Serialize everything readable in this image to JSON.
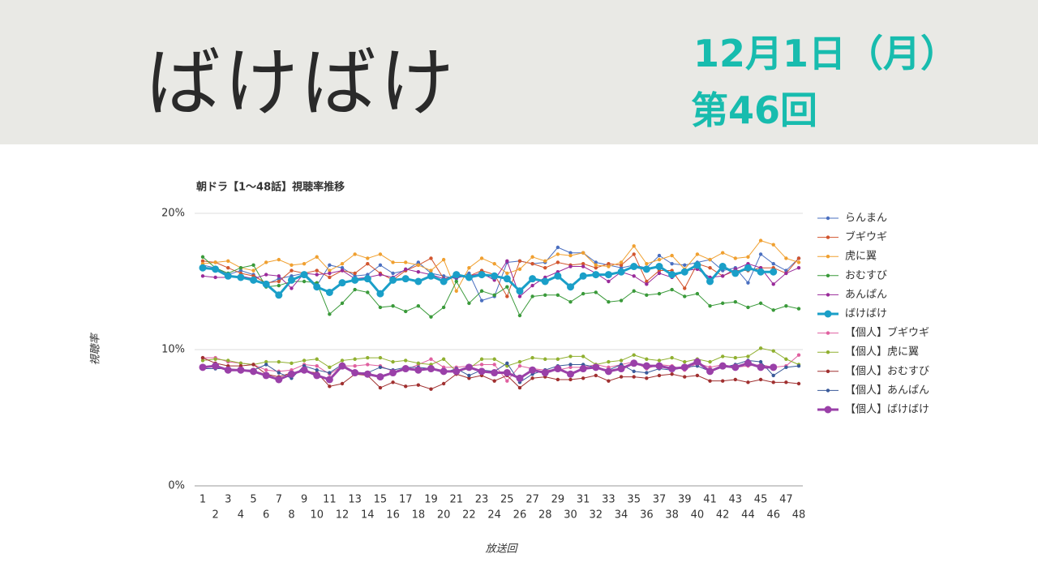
{
  "header": {
    "title": "ばけばけ",
    "date": "12月1日（月）",
    "episode": "第46回"
  },
  "chart_data": {
    "type": "line",
    "title": "朝ドラ【1〜48話】視聴率推移",
    "x_label": "放送回",
    "y_label": "視聴率",
    "categories": [
      1,
      2,
      3,
      4,
      5,
      6,
      7,
      8,
      9,
      10,
      11,
      12,
      13,
      14,
      15,
      16,
      17,
      18,
      19,
      20,
      21,
      22,
      23,
      24,
      25,
      26,
      27,
      28,
      29,
      30,
      31,
      32,
      33,
      34,
      35,
      36,
      37,
      38,
      39,
      40,
      41,
      42,
      43,
      44,
      45,
      46,
      47,
      48
    ],
    "ylim": [
      0,
      20
    ],
    "yticks": [
      {
        "value": 0,
        "label": "0%"
      },
      {
        "value": 10,
        "label": "10%"
      },
      {
        "value": 20,
        "label": "20%"
      }
    ],
    "grid": true,
    "legend": "right",
    "series": [
      {
        "name": "らんまん",
        "color": "#4a6fc0",
        "line_width": 1,
        "values": [
          16.2,
          16.0,
          15.5,
          15.8,
          15.5,
          14.8,
          15.2,
          15.4,
          15.6,
          14.7,
          16.2,
          16.0,
          15.4,
          15.5,
          16.2,
          15.6,
          15.8,
          16.4,
          15.6,
          15.4,
          15.2,
          15.6,
          13.6,
          13.9,
          16.4,
          16.5,
          16.3,
          16.4,
          17.5,
          17.1,
          17.1,
          16.4,
          16.2,
          16.0,
          16.2,
          16.0,
          16.9,
          16.3,
          16.2,
          16.4,
          16.6,
          15.8,
          16.0,
          14.9,
          17.0,
          16.3,
          15.8,
          16.7
        ]
      },
      {
        "name": "ブギウギ",
        "color": "#d2552e",
        "line_width": 1,
        "values": [
          16.5,
          16.4,
          16.0,
          15.6,
          15.4,
          14.9,
          15.0,
          15.8,
          15.6,
          15.8,
          15.3,
          15.8,
          15.6,
          16.3,
          15.6,
          15.1,
          15.8,
          16.2,
          16.7,
          15.2,
          15.4,
          15.4,
          15.8,
          15.5,
          13.9,
          16.5,
          16.3,
          16.0,
          16.4,
          16.2,
          16.3,
          16.0,
          16.3,
          16.2,
          17.0,
          15.0,
          15.8,
          15.8,
          14.5,
          16.3,
          16.0,
          15.4,
          15.8,
          15.8,
          16.0,
          16.0,
          15.6,
          16.7
        ]
      },
      {
        "name": "虎に翼",
        "color": "#f0a030",
        "line_width": 1,
        "values": [
          16.3,
          16.4,
          16.5,
          16.0,
          15.8,
          16.4,
          16.6,
          16.2,
          16.3,
          16.8,
          15.8,
          16.3,
          17.0,
          16.7,
          17.0,
          16.4,
          16.4,
          16.2,
          15.8,
          16.6,
          14.3,
          16.0,
          16.7,
          16.3,
          15.6,
          15.9,
          16.8,
          16.5,
          17.0,
          16.9,
          17.1,
          16.2,
          16.1,
          16.4,
          17.6,
          16.3,
          16.6,
          16.9,
          15.9,
          17.0,
          16.6,
          17.1,
          16.7,
          16.8,
          18.0,
          17.7,
          16.7,
          16.4
        ]
      },
      {
        "name": "おむすび",
        "color": "#3a9a3a",
        "line_width": 1,
        "values": [
          16.8,
          16.0,
          15.6,
          16.0,
          16.2,
          14.6,
          14.7,
          15.0,
          15.0,
          14.9,
          12.6,
          13.4,
          14.4,
          14.2,
          13.1,
          13.2,
          12.8,
          13.2,
          12.4,
          13.1,
          15.0,
          13.4,
          14.3,
          14.0,
          14.6,
          12.5,
          13.9,
          14.0,
          14.0,
          13.5,
          14.1,
          14.2,
          13.5,
          13.6,
          14.3,
          14.0,
          14.1,
          14.4,
          13.9,
          14.1,
          13.2,
          13.4,
          13.5,
          13.1,
          13.4,
          12.9,
          13.2,
          13.0
        ]
      },
      {
        "name": "あんぱん",
        "color": "#9a2a9a",
        "line_width": 1,
        "values": [
          15.4,
          15.3,
          15.3,
          15.4,
          15.2,
          15.5,
          15.4,
          14.5,
          15.6,
          15.5,
          15.6,
          15.8,
          15.2,
          15.3,
          15.5,
          15.3,
          15.9,
          15.7,
          15.5,
          15.2,
          15.3,
          15.4,
          15.6,
          15.1,
          16.5,
          13.9,
          14.7,
          15.3,
          15.7,
          16.1,
          16.1,
          15.6,
          15.0,
          15.7,
          15.4,
          14.8,
          15.6,
          15.3,
          15.8,
          15.9,
          15.3,
          15.4,
          15.9,
          16.3,
          16.0,
          14.8,
          15.6,
          16.0
        ]
      },
      {
        "name": "ばけばけ",
        "color": "#1a9fc8",
        "line_width": 3,
        "values": [
          16.0,
          15.9,
          15.4,
          15.3,
          15.1,
          14.8,
          14.0,
          15.1,
          15.5,
          14.6,
          14.2,
          14.9,
          15.1,
          15.2,
          14.1,
          15.1,
          15.2,
          15.0,
          15.4,
          15.0,
          15.5,
          15.3,
          15.5,
          15.4,
          15.2,
          14.3,
          15.2,
          15.0,
          15.4,
          14.6,
          15.4,
          15.5,
          15.5,
          15.7,
          16.1,
          15.9,
          16.1,
          15.5,
          15.7,
          16.2,
          15.0,
          16.1,
          15.6,
          16.0,
          15.7,
          15.7,
          null,
          null
        ]
      },
      {
        "name": "【個人】ブギウギ",
        "color": "#e060a0",
        "line_width": 1,
        "values": [
          9.4,
          9.4,
          9.1,
          9.0,
          8.9,
          8.5,
          8.4,
          8.5,
          8.9,
          8.8,
          8.2,
          8.8,
          8.8,
          8.9,
          8.8,
          8.4,
          8.5,
          8.9,
          9.3,
          8.7,
          8.7,
          8.8,
          8.9,
          8.9,
          7.7,
          8.8,
          8.6,
          8.5,
          8.5,
          8.7,
          8.7,
          8.9,
          8.7,
          8.9,
          9.1,
          8.6,
          8.9,
          8.8,
          8.5,
          9.0,
          8.7,
          8.9,
          8.7,
          8.8,
          8.9,
          8.7,
          8.8,
          9.6
        ]
      },
      {
        "name": "【個人】虎に翼",
        "color": "#90b030",
        "line_width": 1,
        "values": [
          9.2,
          9.3,
          9.2,
          9.0,
          8.9,
          9.1,
          9.1,
          9.0,
          9.2,
          9.3,
          8.7,
          9.2,
          9.3,
          9.4,
          9.4,
          9.1,
          9.2,
          9.0,
          8.9,
          9.3,
          8.4,
          8.6,
          9.3,
          9.3,
          8.8,
          9.1,
          9.4,
          9.3,
          9.3,
          9.5,
          9.5,
          8.9,
          9.1,
          9.2,
          9.6,
          9.3,
          9.2,
          9.4,
          9.1,
          9.3,
          9.1,
          9.5,
          9.4,
          9.5,
          10.1,
          9.9,
          9.3,
          8.9
        ]
      },
      {
        "name": "【個人】おむすび",
        "color": "#a03030",
        "line_width": 1,
        "values": [
          9.4,
          9.0,
          8.8,
          8.8,
          8.9,
          8.2,
          8.0,
          8.3,
          8.4,
          8.3,
          7.3,
          7.5,
          8.2,
          8.1,
          7.2,
          7.6,
          7.3,
          7.4,
          7.1,
          7.5,
          8.2,
          7.9,
          8.1,
          7.7,
          8.1,
          7.2,
          7.9,
          8.0,
          7.8,
          7.8,
          7.9,
          8.1,
          7.7,
          8.0,
          8.0,
          7.9,
          8.1,
          8.2,
          8.0,
          8.1,
          7.7,
          7.7,
          7.8,
          7.6,
          7.8,
          7.6,
          7.6,
          7.5
        ]
      },
      {
        "name": "【個人】あんぱん",
        "color": "#3a5a9a",
        "line_width": 1,
        "values": [
          8.6,
          8.6,
          8.6,
          8.5,
          8.5,
          8.9,
          8.3,
          7.9,
          8.8,
          8.5,
          8.3,
          8.9,
          8.3,
          8.3,
          8.7,
          8.5,
          8.7,
          8.7,
          8.6,
          8.3,
          8.6,
          8.1,
          8.5,
          8.4,
          9.0,
          7.6,
          8.2,
          8.5,
          8.8,
          8.9,
          8.9,
          8.7,
          8.5,
          8.9,
          8.4,
          8.3,
          8.6,
          8.5,
          8.7,
          8.8,
          8.4,
          8.7,
          8.9,
          9.2,
          9.1,
          8.1,
          8.7,
          8.8
        ]
      },
      {
        "name": "【個人】ばけばけ",
        "color": "#9a40a8",
        "line_width": 3,
        "values": [
          8.7,
          8.8,
          8.5,
          8.5,
          8.4,
          8.1,
          7.8,
          8.2,
          8.5,
          8.1,
          7.8,
          8.8,
          8.3,
          8.2,
          8.0,
          8.3,
          8.6,
          8.5,
          8.6,
          8.4,
          8.4,
          8.7,
          8.4,
          8.3,
          8.3,
          7.9,
          8.5,
          8.3,
          8.6,
          8.2,
          8.6,
          8.7,
          8.4,
          8.6,
          9.0,
          8.8,
          8.8,
          8.6,
          8.7,
          9.1,
          8.4,
          8.8,
          8.7,
          9.0,
          8.7,
          8.7,
          null,
          null
        ]
      }
    ]
  }
}
